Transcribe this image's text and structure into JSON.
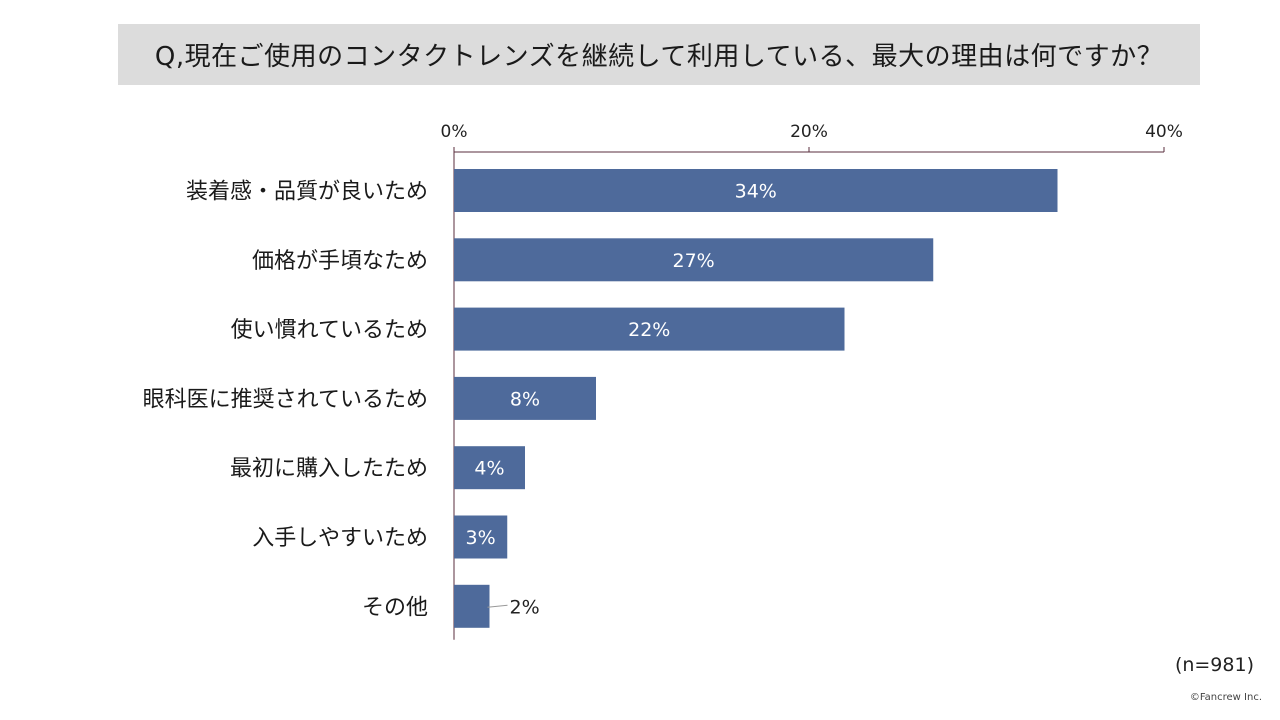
{
  "title": "Q,現在ご使用のコンタクトレンズを継続して利用している、最大の理由は何ですか？",
  "sample_note": "(n=981)",
  "copyright": "©Fancrew Inc.",
  "colors": {
    "bar": "#4e6a9b",
    "axis": "#5a2e3c",
    "title_bg": "#dcdcdc"
  },
  "chart_data": {
    "type": "bar",
    "orientation": "horizontal",
    "categories": [
      "装着感・品質が良いため",
      "価格が手頃なため",
      "使い慣れているため",
      "眼科医に推奨されているため",
      "最初に購入したため",
      "入手しやすいため",
      "その他"
    ],
    "values": [
      34,
      27,
      22,
      8,
      4,
      3,
      2
    ],
    "value_labels": [
      "34%",
      "27%",
      "22%",
      "8%",
      "4%",
      "3%",
      "2%"
    ],
    "xlim": [
      0,
      40
    ],
    "ticks": [
      0,
      20,
      40
    ],
    "tick_labels": [
      "0%",
      "20%",
      "40%"
    ],
    "axis_position": "top",
    "grid": false,
    "legend": "none"
  }
}
